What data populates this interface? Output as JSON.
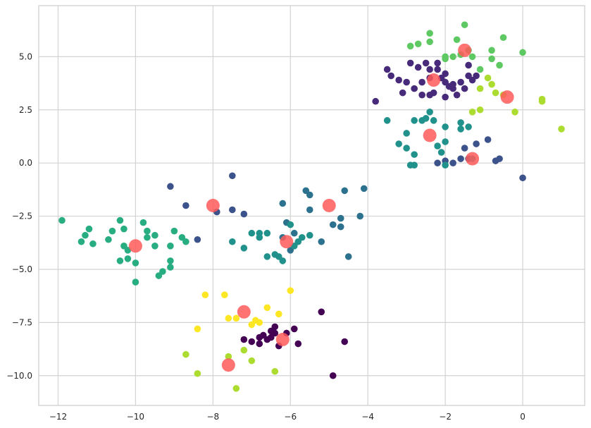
{
  "chart_data": {
    "type": "scatter",
    "title": "",
    "xlabel": "",
    "ylabel": "",
    "xlim": [
      -12.5,
      1.6
    ],
    "ylim": [
      -11.4,
      7.4
    ],
    "grid": true,
    "x_ticks": [
      {
        "value": -12,
        "label": "−12"
      },
      {
        "value": -10,
        "label": "−10"
      },
      {
        "value": -8,
        "label": "−8"
      },
      {
        "value": -6,
        "label": "−6"
      },
      {
        "value": -4,
        "label": "−4"
      },
      {
        "value": -2,
        "label": "−2"
      },
      {
        "value": 0,
        "label": "0"
      }
    ],
    "y_ticks": [
      {
        "value": 5,
        "label": "5.0"
      },
      {
        "value": 2.5,
        "label": "2.5"
      },
      {
        "value": 0,
        "label": "0.0"
      },
      {
        "value": -2.5,
        "label": "−2.5"
      },
      {
        "value": -5,
        "label": "−5.0"
      },
      {
        "value": -7.5,
        "label": "−7.5"
      },
      {
        "value": -10,
        "label": "−10.0"
      }
    ],
    "series": [
      {
        "color": "#440154",
        "points": [
          [
            -7.2,
            -8.3
          ],
          [
            -7.0,
            -8.4
          ],
          [
            -6.8,
            -8.2
          ],
          [
            -6.8,
            -8.5
          ],
          [
            -6.6,
            -8.3
          ],
          [
            -6.5,
            -8.2
          ],
          [
            -6.4,
            -8.0
          ],
          [
            -6.4,
            -7.7
          ],
          [
            -6.3,
            -8.6
          ],
          [
            -6.1,
            -8.0
          ],
          [
            -5.9,
            -7.8
          ],
          [
            -5.8,
            -8.5
          ],
          [
            -5.2,
            -7.0
          ],
          [
            -4.9,
            -10.0
          ],
          [
            -4.6,
            -8.4
          ],
          [
            -6.7,
            -8.1
          ],
          [
            -6.5,
            -7.9
          ]
        ]
      },
      {
        "color": "#472a7a",
        "points": [
          [
            -2.9,
            4.7
          ],
          [
            -2.7,
            4.5
          ],
          [
            -2.5,
            4.7
          ],
          [
            -2.4,
            4.4
          ],
          [
            -2.4,
            4.0
          ],
          [
            -2.2,
            4.4
          ],
          [
            -2.1,
            4.0
          ],
          [
            -2.0,
            3.8
          ],
          [
            -1.9,
            3.6
          ],
          [
            -1.8,
            3.5
          ],
          [
            -1.6,
            3.8
          ],
          [
            -1.5,
            3.5
          ],
          [
            -1.4,
            4.1
          ],
          [
            -1.2,
            4.1
          ],
          [
            -2.3,
            3.3
          ],
          [
            -2.4,
            3.2
          ],
          [
            -2.6,
            3.2
          ],
          [
            -3.1,
            3.3
          ],
          [
            -3.8,
            2.9
          ],
          [
            -3.5,
            4.4
          ],
          [
            -3.2,
            3.9
          ],
          [
            -2.0,
            3.1
          ],
          [
            -1.7,
            3.2
          ],
          [
            -2.6,
            3.8
          ],
          [
            -2.0,
            4.2
          ],
          [
            -1.8,
            3.7
          ],
          [
            -1.4,
            4.6
          ],
          [
            -2.2,
            4.7
          ],
          [
            -3.4,
            4.1
          ],
          [
            -3.0,
            3.8
          ],
          [
            -1.3,
            3.9
          ],
          [
            -2.8,
            3.5
          ]
        ]
      },
      {
        "color": "#3b528b",
        "points": [
          [
            -9.1,
            -1.1
          ],
          [
            -8.7,
            -2.0
          ],
          [
            -8.4,
            -3.6
          ],
          [
            -7.5,
            -0.6
          ],
          [
            -7.5,
            -2.2
          ],
          [
            -7.2,
            -2.4
          ],
          [
            -7.9,
            -2.3
          ],
          [
            -1.5,
            0.7
          ],
          [
            -1.2,
            0.9
          ],
          [
            -0.9,
            1.1
          ],
          [
            -0.7,
            0.1
          ],
          [
            -0.6,
            0.2
          ],
          [
            -1.6,
            0.2
          ],
          [
            -2.0,
            0.1
          ],
          [
            -1.8,
            0.0
          ],
          [
            -2.2,
            0.0
          ],
          [
            0.0,
            -0.7
          ],
          [
            -1.4,
            0.2
          ]
        ]
      },
      {
        "color": "#2c728e",
        "points": [
          [
            -5.9,
            -3.3
          ],
          [
            -5.6,
            -1.3
          ],
          [
            -5.5,
            -1.5
          ],
          [
            -5.5,
            -2.2
          ],
          [
            -5.2,
            -3.7
          ],
          [
            -4.9,
            -2.9
          ],
          [
            -4.7,
            -3.0
          ],
          [
            -4.7,
            -2.6
          ],
          [
            -4.6,
            -1.3
          ],
          [
            -4.5,
            -4.4
          ],
          [
            -4.2,
            -2.5
          ],
          [
            -4.1,
            -1.2
          ],
          [
            -6.2,
            -1.9
          ],
          [
            -6.1,
            -2.8
          ],
          [
            -6.0,
            -4.1
          ],
          [
            -6.2,
            -3.5
          ]
        ]
      },
      {
        "color": "#21918c",
        "points": [
          [
            -7.5,
            -3.7
          ],
          [
            -7.2,
            -4.0
          ],
          [
            -7.0,
            -3.3
          ],
          [
            -6.8,
            -3.3
          ],
          [
            -6.8,
            -3.5
          ],
          [
            -6.6,
            -3.3
          ],
          [
            -6.6,
            -4.4
          ],
          [
            -6.4,
            -4.3
          ],
          [
            -6.3,
            -4.4
          ],
          [
            -6.2,
            -4.6
          ],
          [
            -6.0,
            -2.9
          ],
          [
            -5.8,
            -3.7
          ],
          [
            -5.7,
            -3.5
          ],
          [
            -5.5,
            -3.4
          ],
          [
            -5.9,
            -3.9
          ],
          [
            -3.5,
            2.0
          ],
          [
            -3.0,
            1.4
          ],
          [
            -3.2,
            0.9
          ],
          [
            -3.0,
            0.7
          ],
          [
            -2.8,
            0.4
          ],
          [
            -2.9,
            -0.1
          ],
          [
            -2.8,
            -0.1
          ],
          [
            -2.6,
            2.0
          ],
          [
            -2.5,
            2.1
          ],
          [
            -2.4,
            2.4
          ],
          [
            -2.3,
            2.0
          ],
          [
            -2.2,
            0.8
          ],
          [
            -2.1,
            0.5
          ],
          [
            -2.0,
            1.0
          ],
          [
            -2.0,
            1.7
          ],
          [
            -1.6,
            1.6
          ],
          [
            -1.6,
            1.9
          ],
          [
            -1.4,
            1.7
          ],
          [
            -1.3,
            0.2
          ],
          [
            -2.8,
            2.0
          ],
          [
            -2.0,
            -0.1
          ]
        ]
      },
      {
        "color": "#27ad81",
        "points": [
          [
            -11.9,
            -2.7
          ],
          [
            -11.4,
            -3.7
          ],
          [
            -11.3,
            -3.4
          ],
          [
            -11.2,
            -3.1
          ],
          [
            -11.1,
            -3.8
          ],
          [
            -10.7,
            -3.6
          ],
          [
            -10.6,
            -3.2
          ],
          [
            -10.4,
            -2.7
          ],
          [
            -10.3,
            -3.1
          ],
          [
            -10.3,
            -3.9
          ],
          [
            -10.2,
            -4.1
          ],
          [
            -10.2,
            -4.5
          ],
          [
            -10.0,
            -4.7
          ],
          [
            -10.0,
            -5.6
          ],
          [
            -9.8,
            -2.8
          ],
          [
            -9.7,
            -3.2
          ],
          [
            -9.7,
            -3.5
          ],
          [
            -9.5,
            -3.4
          ],
          [
            -9.5,
            -3.9
          ],
          [
            -9.4,
            -5.3
          ],
          [
            -9.3,
            -5.1
          ],
          [
            -9.1,
            -4.9
          ],
          [
            -9.1,
            -4.6
          ],
          [
            -9.0,
            -3.2
          ],
          [
            -8.8,
            -3.5
          ],
          [
            -8.7,
            -3.7
          ],
          [
            -9.1,
            -3.9
          ],
          [
            -10.4,
            -4.6
          ]
        ]
      },
      {
        "color": "#5ec962",
        "points": [
          [
            -2.9,
            5.5
          ],
          [
            -2.7,
            5.6
          ],
          [
            -2.4,
            6.1
          ],
          [
            -2.4,
            5.7
          ],
          [
            -2.0,
            5.0
          ],
          [
            -1.8,
            5.0
          ],
          [
            -1.7,
            5.8
          ],
          [
            -1.5,
            6.5
          ],
          [
            -1.6,
            5.1
          ],
          [
            -1.4,
            5.3
          ],
          [
            -1.1,
            4.4
          ],
          [
            -0.8,
            5.3
          ],
          [
            -0.8,
            4.9
          ],
          [
            -0.6,
            4.6
          ],
          [
            -0.5,
            5.9
          ],
          [
            0.0,
            5.2
          ],
          [
            -2.0,
            4.9
          ],
          [
            -1.3,
            5.0
          ]
        ]
      },
      {
        "color": "#addc30",
        "points": [
          [
            -1.1,
            3.5
          ],
          [
            -0.9,
            4.0
          ],
          [
            -0.8,
            3.7
          ],
          [
            -0.7,
            3.3
          ],
          [
            -1.3,
            2.4
          ],
          [
            -1.1,
            2.5
          ],
          [
            -0.2,
            2.4
          ],
          [
            0.5,
            3.0
          ],
          [
            0.5,
            2.9
          ],
          [
            1.0,
            1.6
          ],
          [
            -8.7,
            -9.0
          ],
          [
            -8.4,
            -9.9
          ],
          [
            -7.6,
            -9.1
          ],
          [
            -7.2,
            -8.8
          ],
          [
            -7.0,
            -9.3
          ],
          [
            -6.4,
            -9.8
          ],
          [
            -7.4,
            -10.6
          ],
          [
            -0.5,
            3.2
          ]
        ]
      },
      {
        "color": "#fde725",
        "points": [
          [
            -8.2,
            -6.2
          ],
          [
            -8.4,
            -7.8
          ],
          [
            -7.7,
            -6.2
          ],
          [
            -7.6,
            -7.3
          ],
          [
            -7.4,
            -7.3
          ],
          [
            -7.0,
            -7.6
          ],
          [
            -6.8,
            -7.5
          ],
          [
            -6.6,
            -6.8
          ],
          [
            -6.3,
            -7.1
          ],
          [
            -6.0,
            -6.0
          ],
          [
            -6.9,
            -7.4
          ]
        ]
      }
    ],
    "centroids": {
      "color": "#ff5a5a",
      "points": [
        [
          -10.0,
          -3.9
        ],
        [
          -8.0,
          -2.0
        ],
        [
          -7.2,
          -7.0
        ],
        [
          -7.6,
          -9.5
        ],
        [
          -6.2,
          -8.3
        ],
        [
          -6.1,
          -3.7
        ],
        [
          -5.0,
          -2.0
        ],
        [
          -2.4,
          1.3
        ],
        [
          -2.3,
          3.9
        ],
        [
          -1.5,
          5.3
        ],
        [
          -0.4,
          3.1
        ],
        [
          -1.3,
          0.2
        ]
      ]
    }
  }
}
